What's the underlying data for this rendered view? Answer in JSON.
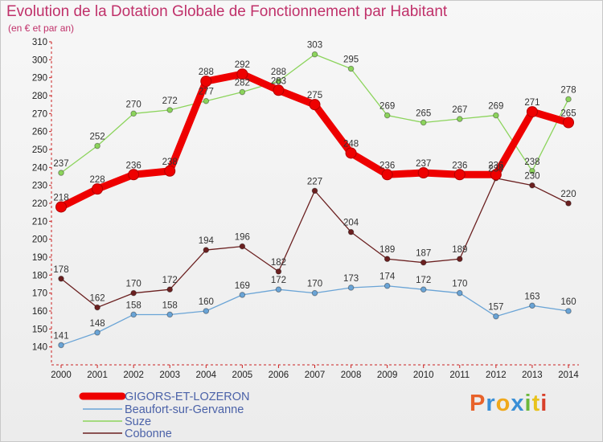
{
  "title": "Evolution de la Dotation Globale de Fonctionnement par Habitant",
  "subtitle": "(en € et par an)",
  "logo": {
    "text": "Proxiti",
    "colors": [
      "#e8622a",
      "#3a8fd6",
      "#f0a81c",
      "#3a8fd6",
      "#6cb83b",
      "#e8c21c",
      "#d8402a"
    ]
  },
  "chart_data": {
    "type": "line",
    "x": [
      "2000",
      "2001",
      "2002",
      "2003",
      "2004",
      "2005",
      "2006",
      "2007",
      "2008",
      "2009",
      "2010",
      "2011",
      "2012",
      "2013",
      "2014"
    ],
    "ylim": [
      130,
      310
    ],
    "yticks": [
      140,
      150,
      160,
      170,
      180,
      190,
      200,
      210,
      220,
      230,
      240,
      250,
      260,
      270,
      280,
      290,
      300,
      310
    ],
    "grid": false,
    "legend_position": "bottom-left",
    "series": [
      {
        "name": "GIGORS-ET-LOZERON",
        "color": "#ee0000",
        "values": [
          218,
          228,
          236,
          238,
          288,
          292,
          283,
          275,
          248,
          236,
          237,
          236,
          236,
          271,
          265
        ]
      },
      {
        "name": "Beaufort-sur-Gervanne",
        "color": "#6aa4d6",
        "values": [
          141,
          148,
          158,
          158,
          160,
          169,
          172,
          170,
          173,
          174,
          172,
          170,
          157,
          163,
          160
        ]
      },
      {
        "name": "Suze",
        "color": "#8cd45c",
        "values": [
          237,
          252,
          270,
          272,
          277,
          282,
          288,
          303,
          295,
          269,
          265,
          267,
          269,
          238,
          278
        ]
      },
      {
        "name": "Cobonne",
        "color": "#6b2020",
        "values": [
          178,
          162,
          170,
          172,
          194,
          196,
          182,
          227,
          204,
          189,
          187,
          189,
          234,
          230,
          220
        ]
      }
    ]
  }
}
